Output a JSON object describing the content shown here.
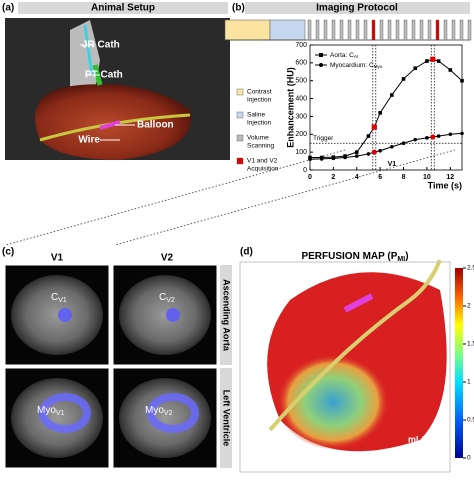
{
  "panels": {
    "a": {
      "label": "(a)",
      "title": "Animal Setup",
      "annotations": [
        "JR Cath",
        "PT Cath",
        "Balloon",
        "Wire"
      ]
    },
    "b": {
      "label": "(b)",
      "title": "Imaging Protocol",
      "legend": [
        [
          "Contrast",
          "Injection"
        ],
        [
          "Saline",
          "Injection"
        ],
        [
          "Volume",
          "Scanning"
        ],
        [
          "V1 and V2",
          "Acquisition"
        ]
      ]
    },
    "c": {
      "label": "(c)",
      "columns": [
        "V1",
        "V2"
      ],
      "rows": [
        "Ascending Aorta",
        "Left Ventricle"
      ],
      "tiles": [
        {
          "base": "C",
          "sub": "V1"
        },
        {
          "base": "C",
          "sub": "V2"
        },
        {
          "base": "Myo",
          "sub": "V1"
        },
        {
          "base": "Myo",
          "sub": "V2"
        }
      ]
    },
    "d": {
      "label": "(d)",
      "title": "PERFUSION MAP (P",
      "title_sub": "MI",
      "title_end": ")",
      "unit": "mL/min/g",
      "colorbar_ticks": [
        0,
        0.5,
        1,
        1.5,
        2,
        2.5
      ],
      "colorbar_lim": [
        0,
        2.5
      ]
    }
  },
  "chart_data": {
    "type": "line",
    "xlabel": "Time (s)",
    "ylabel": "Enhancement (HU)",
    "xlim": [
      0,
      13
    ],
    "ylim": [
      0,
      700
    ],
    "xticks": [
      0,
      2,
      4,
      6,
      8,
      10,
      12
    ],
    "yticks": [
      0,
      100,
      200,
      300,
      400,
      500,
      600,
      700
    ],
    "x": [
      0,
      1,
      2,
      3,
      4,
      5,
      5.5,
      6,
      7,
      8,
      9,
      10,
      10.5,
      11,
      12,
      13
    ],
    "series": [
      {
        "name": "Aorta: C",
        "sub": "AI",
        "color": "#000000",
        "marker": "square",
        "values": [
          70,
          70,
          72,
          78,
          100,
          190,
          240,
          320,
          420,
          510,
          570,
          610,
          620,
          610,
          560,
          500
        ]
      },
      {
        "name": "Myocardium: C",
        "sub": "Myo",
        "color": "#000000",
        "marker": "circle",
        "values": [
          60,
          62,
          65,
          70,
          78,
          90,
          100,
          108,
          130,
          150,
          170,
          180,
          185,
          190,
          200,
          205
        ]
      }
    ],
    "highlight_x": [
      5.5,
      10.5
    ],
    "highlight_color": "#dd0000",
    "trigger": {
      "label": "Trigger",
      "value": 150
    },
    "annotation": {
      "label": "V1",
      "x": 7
    }
  }
}
